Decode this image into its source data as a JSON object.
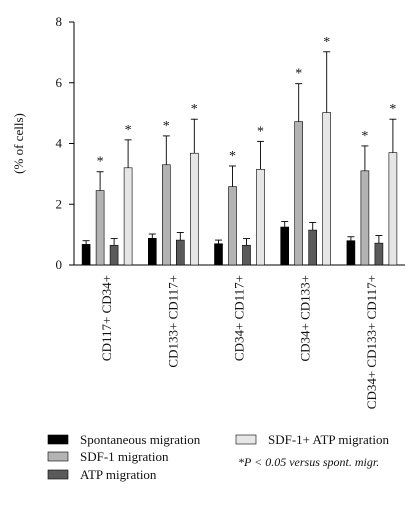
{
  "chart_data": {
    "type": "bar",
    "title": "",
    "xlabel": "",
    "ylabel": "(% of cells)",
    "ylim": [
      0,
      8
    ],
    "yticks": [
      "0",
      "2",
      "4",
      "6",
      "8"
    ],
    "grid": false,
    "legend_position": "bottom",
    "categories": [
      "CD117+ CD34+",
      "CD133+ CD117+",
      "CD34+ CD117+",
      "CD34+ CD133+",
      "CD34+ CD133+ CD117+"
    ],
    "series": [
      {
        "name": "Spontaneous migration",
        "color": "#000000",
        "values": [
          0.68,
          0.88,
          0.7,
          1.25,
          0.8
        ],
        "errors": [
          0.12,
          0.14,
          0.12,
          0.18,
          0.13
        ],
        "significance": [
          "",
          "",
          "",
          "",
          ""
        ]
      },
      {
        "name": "SDF-1 migration",
        "color": "#b3b3b3",
        "values": [
          2.45,
          3.3,
          2.58,
          4.72,
          3.1
        ],
        "errors": [
          0.62,
          0.95,
          0.68,
          1.25,
          0.82
        ],
        "significance": [
          "*",
          "*",
          "*",
          "*",
          "*"
        ]
      },
      {
        "name": "ATP migration",
        "color": "#5a5a5a",
        "values": [
          0.65,
          0.82,
          0.65,
          1.15,
          0.72
        ],
        "errors": [
          0.22,
          0.25,
          0.22,
          0.25,
          0.25
        ],
        "significance": [
          "",
          "",
          "",
          "",
          ""
        ]
      },
      {
        "name": "SDF-1+ ATP migration",
        "color": "#e6e6e6",
        "values": [
          3.2,
          3.68,
          3.15,
          5.02,
          3.7
        ],
        "errors": [
          0.92,
          1.12,
          0.92,
          2.0,
          1.1
        ],
        "significance": [
          "*",
          "*",
          "*",
          "*",
          "*"
        ]
      }
    ],
    "annotation": "*P < 0.05 versus spont. migr."
  }
}
